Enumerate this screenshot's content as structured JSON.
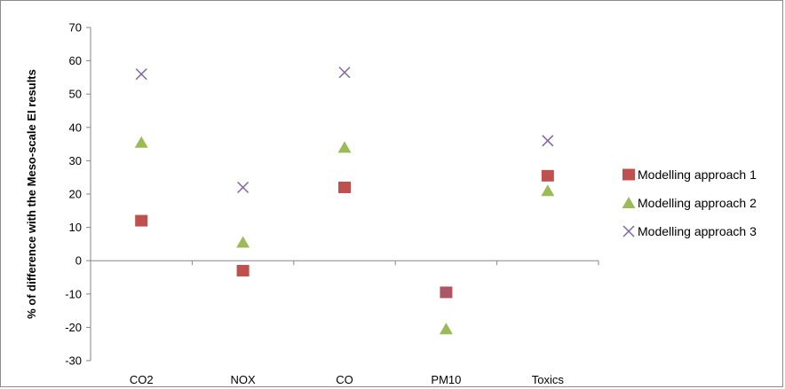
{
  "chart_data": {
    "type": "scatter",
    "categories": [
      "CO2",
      "NOX",
      "CO",
      "PM10",
      "Toxics"
    ],
    "ylabel": "% of difference with the Meso-scale EI results",
    "ylim": [
      -30,
      70
    ],
    "yticks": [
      -30,
      -20,
      -10,
      0,
      10,
      20,
      30,
      40,
      50,
      60,
      70
    ],
    "ytick_labels": [
      "-30",
      "-20",
      "-10",
      "0",
      "10",
      "20",
      "30",
      "40",
      "50",
      "60",
      "70"
    ],
    "grid": false,
    "legend_position": "right",
    "series": [
      {
        "name": "Modelling approach 1",
        "marker": "square",
        "color": "#c0504d",
        "values": [
          12,
          -3,
          22,
          -9.5,
          25.5
        ]
      },
      {
        "name": "Modelling approach 2",
        "marker": "triangle",
        "color": "#9bbb59",
        "values": [
          35.5,
          5.5,
          34,
          -20.5,
          21
        ]
      },
      {
        "name": "Modelling approach 3",
        "marker": "x",
        "color": "#8064a2",
        "values": [
          56,
          22,
          56.5,
          -9.5,
          36
        ]
      }
    ]
  }
}
